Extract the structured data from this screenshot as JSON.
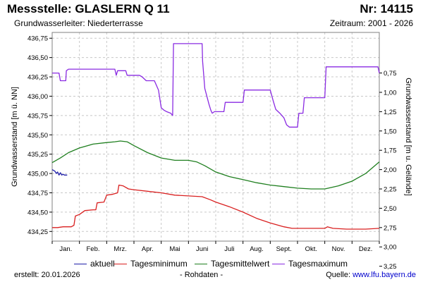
{
  "header": {
    "title": "Messstelle: GLASLERN Q 11",
    "station_no": "Nr: 14115",
    "aquifer": "Grundwasserleiter:   Niederterrasse",
    "period": "Zeitraum: 2001 - 2026"
  },
  "footer": {
    "created": "erstellt:  20.01.2026",
    "raw": "- Rohdaten -",
    "source_label": "Quelle: ",
    "source_link": "www.lfu.bayern.de"
  },
  "colors": {
    "aktuell": "#1f1fa8",
    "min": "#d92020",
    "mean": "#1f7f1f",
    "max": "#8a2be2",
    "grid": "#c8c8c8"
  },
  "chart_data": {
    "type": "line",
    "x_unit": "month of year (1 = 1 Jan)",
    "xlim": [
      1,
      13
    ],
    "xticks": [
      {
        "x": 1.5,
        "label": "Jan."
      },
      {
        "x": 2.5,
        "label": "Feb."
      },
      {
        "x": 3.5,
        "label": "Mrz."
      },
      {
        "x": 4.5,
        "label": "Apr."
      },
      {
        "x": 5.5,
        "label": "Mai"
      },
      {
        "x": 6.5,
        "label": "Juni"
      },
      {
        "x": 7.5,
        "label": "Juli"
      },
      {
        "x": 8.5,
        "label": "Aug."
      },
      {
        "x": 9.5,
        "label": "Sept."
      },
      {
        "x": 10.5,
        "label": "Okt."
      },
      {
        "x": 11.5,
        "label": "Nov."
      },
      {
        "x": 12.5,
        "label": "Dez."
      }
    ],
    "ylabel_left": "Grundwasserstand [m ü. NN]",
    "ylabel_right": "Grundwasserstand [m u. Gelände]",
    "ylim": [
      434.125,
      436.825
    ],
    "yticks_left": [
      "434,25",
      "434,50",
      "434,75",
      "435,00",
      "435,25",
      "435,50",
      "435,75",
      "436,00",
      "436,25",
      "436,50",
      "436,75"
    ],
    "yticks_right": [
      "0,75",
      "1,00",
      "1,25",
      "1,50",
      "1,75",
      "2,00",
      "2,25",
      "2,50",
      "2,75",
      "3,00",
      "3,25"
    ],
    "right_axis_offset": 437.05,
    "grid": true,
    "legend_position": "bottom",
    "series": [
      {
        "name": "aktuell",
        "key": "aktuell",
        "values": [
          [
            1.0,
            435.05
          ],
          [
            1.1,
            435.03
          ],
          [
            1.15,
            435.0
          ],
          [
            1.2,
            435.02
          ],
          [
            1.25,
            434.98
          ],
          [
            1.3,
            435.01
          ],
          [
            1.35,
            434.98
          ],
          [
            1.4,
            434.99
          ],
          [
            1.45,
            434.98
          ],
          [
            1.55,
            434.98
          ]
        ]
      },
      {
        "name": "Tagesminimum",
        "key": "min",
        "values": [
          [
            1.0,
            434.3
          ],
          [
            1.2,
            434.3
          ],
          [
            1.4,
            434.31
          ],
          [
            1.7,
            434.31
          ],
          [
            1.8,
            434.33
          ],
          [
            1.85,
            434.45
          ],
          [
            2.0,
            434.47
          ],
          [
            2.2,
            434.52
          ],
          [
            2.5,
            434.53
          ],
          [
            2.6,
            434.53
          ],
          [
            2.65,
            434.62
          ],
          [
            2.9,
            434.63
          ],
          [
            3.0,
            434.72
          ],
          [
            3.2,
            434.73
          ],
          [
            3.4,
            434.75
          ],
          [
            3.45,
            434.85
          ],
          [
            3.6,
            434.84
          ],
          [
            3.8,
            434.8
          ],
          [
            4.0,
            434.79
          ],
          [
            4.5,
            434.77
          ],
          [
            5.0,
            434.75
          ],
          [
            5.5,
            434.72
          ],
          [
            6.0,
            434.71
          ],
          [
            6.5,
            434.7
          ],
          [
            6.8,
            434.66
          ],
          [
            7.0,
            434.63
          ],
          [
            7.5,
            434.57
          ],
          [
            8.0,
            434.5
          ],
          [
            8.5,
            434.42
          ],
          [
            9.0,
            434.36
          ],
          [
            9.5,
            434.31
          ],
          [
            9.8,
            434.29
          ],
          [
            10.5,
            434.29
          ],
          [
            11.0,
            434.29
          ],
          [
            11.1,
            434.31
          ],
          [
            11.3,
            434.29
          ],
          [
            11.8,
            434.28
          ],
          [
            12.5,
            434.28
          ],
          [
            13.0,
            434.29
          ]
        ]
      },
      {
        "name": "Tagesmittelwert",
        "key": "mean",
        "values": [
          [
            1.0,
            435.14
          ],
          [
            1.3,
            435.2
          ],
          [
            1.6,
            435.27
          ],
          [
            2.0,
            435.33
          ],
          [
            2.5,
            435.38
          ],
          [
            3.0,
            435.4
          ],
          [
            3.3,
            435.41
          ],
          [
            3.5,
            435.42
          ],
          [
            3.75,
            435.41
          ],
          [
            4.0,
            435.36
          ],
          [
            4.5,
            435.27
          ],
          [
            5.0,
            435.2
          ],
          [
            5.5,
            435.17
          ],
          [
            6.0,
            435.17
          ],
          [
            6.3,
            435.15
          ],
          [
            6.6,
            435.1
          ],
          [
            7.0,
            435.02
          ],
          [
            7.5,
            434.96
          ],
          [
            8.0,
            434.92
          ],
          [
            8.5,
            434.88
          ],
          [
            9.0,
            434.85
          ],
          [
            9.5,
            434.83
          ],
          [
            10.0,
            434.81
          ],
          [
            10.5,
            434.8
          ],
          [
            11.0,
            434.8
          ],
          [
            11.5,
            434.84
          ],
          [
            12.0,
            434.9
          ],
          [
            12.5,
            435.0
          ],
          [
            13.0,
            435.15
          ]
        ]
      },
      {
        "name": "Tagesmaximum",
        "key": "max",
        "values": [
          [
            1.0,
            436.3
          ],
          [
            1.25,
            436.3
          ],
          [
            1.3,
            436.2
          ],
          [
            1.5,
            436.2
          ],
          [
            1.52,
            436.33
          ],
          [
            1.6,
            436.35
          ],
          [
            2.5,
            436.35
          ],
          [
            3.3,
            436.35
          ],
          [
            3.35,
            436.27
          ],
          [
            3.4,
            436.33
          ],
          [
            3.7,
            436.33
          ],
          [
            3.75,
            436.27
          ],
          [
            4.2,
            436.27
          ],
          [
            4.3,
            436.25
          ],
          [
            4.45,
            436.2
          ],
          [
            4.75,
            436.2
          ],
          [
            4.9,
            436.08
          ],
          [
            5.0,
            435.85
          ],
          [
            5.1,
            435.82
          ],
          [
            5.2,
            435.8
          ],
          [
            5.35,
            435.78
          ],
          [
            5.42,
            435.75
          ],
          [
            5.45,
            436.68
          ],
          [
            6.5,
            436.68
          ],
          [
            6.52,
            436.45
          ],
          [
            6.6,
            436.1
          ],
          [
            6.75,
            435.9
          ],
          [
            6.82,
            435.82
          ],
          [
            6.87,
            435.78
          ],
          [
            6.95,
            435.8
          ],
          [
            7.3,
            435.8
          ],
          [
            7.35,
            435.92
          ],
          [
            8.0,
            435.92
          ],
          [
            8.05,
            436.08
          ],
          [
            9.0,
            436.08
          ],
          [
            9.1,
            435.95
          ],
          [
            9.2,
            435.83
          ],
          [
            9.35,
            435.78
          ],
          [
            9.5,
            435.72
          ],
          [
            9.6,
            435.63
          ],
          [
            9.7,
            435.6
          ],
          [
            10.0,
            435.6
          ],
          [
            10.05,
            435.78
          ],
          [
            10.2,
            435.78
          ],
          [
            10.25,
            435.98
          ],
          [
            11.0,
            435.98
          ],
          [
            11.05,
            436.38
          ],
          [
            12.95,
            436.38
          ],
          [
            13.0,
            436.3
          ]
        ]
      }
    ]
  },
  "legend": [
    {
      "key": "aktuell",
      "label": "aktuell"
    },
    {
      "key": "min",
      "label": "Tagesminimum"
    },
    {
      "key": "mean",
      "label": "Tagesmittelwert"
    },
    {
      "key": "max",
      "label": "Tagesmaximum"
    }
  ]
}
